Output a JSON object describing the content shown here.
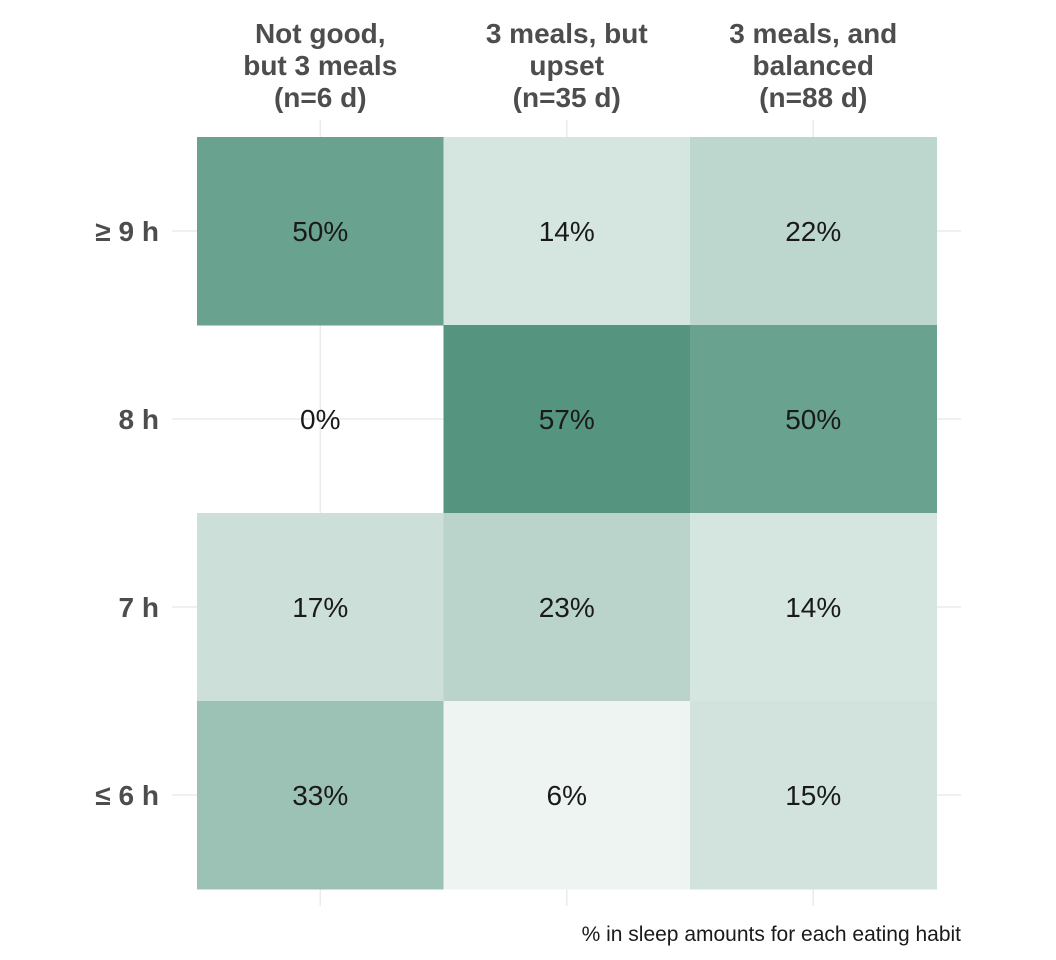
{
  "chart_data": {
    "type": "heatmap",
    "columns": [
      {
        "lines": [
          "Not good,",
          "but 3 meals",
          "(n=6 d)"
        ]
      },
      {
        "lines": [
          "3 meals, but",
          "upset",
          "(n=35 d)"
        ]
      },
      {
        "lines": [
          "3 meals, and",
          "balanced",
          "(n=88 d)"
        ]
      }
    ],
    "rows": [
      "≥ 9 h",
      "8 h",
      "7 h",
      "≤ 6 h"
    ],
    "values": [
      [
        50,
        14,
        22
      ],
      [
        0,
        57,
        50
      ],
      [
        17,
        23,
        14
      ],
      [
        33,
        6,
        15
      ]
    ],
    "labels": [
      [
        "50%",
        "14%",
        "22%"
      ],
      [
        "0%",
        "57%",
        "50%"
      ],
      [
        "17%",
        "23%",
        "14%"
      ],
      [
        "33%",
        "6%",
        "15%"
      ]
    ],
    "caption": "% in sleep amounts for each eating habit",
    "color_low": "#ffffff",
    "color_high": "#2e7d63",
    "value_range": [
      0,
      70
    ],
    "grid": true,
    "legend": "none"
  }
}
